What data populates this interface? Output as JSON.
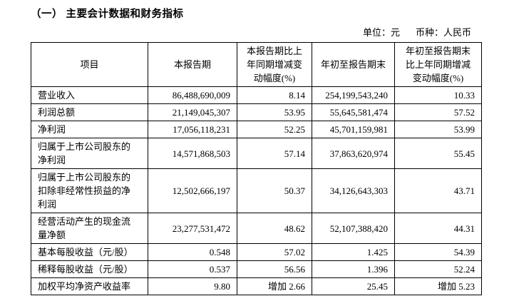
{
  "document": {
    "section_title": "（一） 主要会计数据和财务指标",
    "unit_label": "单位：元",
    "currency_label": "币种：人民币"
  },
  "table": {
    "headers": {
      "item": "项目",
      "current_period": "本报告期",
      "current_period_change": "本报告期比上\n年同期增减变\n动幅度(%)",
      "year_to_date": "年初至报告期末",
      "year_to_date_change": "年初至报告期末\n比上年同期增减\n变动幅度(%)"
    },
    "rows": [
      {
        "item": "营业收入",
        "current_period": "86,488,690,009",
        "current_period_change": "8.14",
        "year_to_date": "254,199,543,240",
        "year_to_date_change": "10.33"
      },
      {
        "item": "利润总额",
        "current_period": "21,149,045,307",
        "current_period_change": "53.95",
        "year_to_date": "55,645,581,474",
        "year_to_date_change": "57.52"
      },
      {
        "item": "净利润",
        "current_period": "17,056,118,231",
        "current_period_change": "52.25",
        "year_to_date": "45,701,159,981",
        "year_to_date_change": "53.99"
      },
      {
        "item": "归属于上市公司股东的\n净利润",
        "current_period": "14,571,868,503",
        "current_period_change": "57.14",
        "year_to_date": "37,863,620,974",
        "year_to_date_change": "55.45"
      },
      {
        "item": "归属于上市公司股东的\n扣除非经常性损益的净\n利润",
        "current_period": "12,502,666,197",
        "current_period_change": "50.37",
        "year_to_date": "34,126,643,303",
        "year_to_date_change": "43.71"
      },
      {
        "item": "经营活动产生的现金流\n量净额",
        "current_period": "23,277,531,472",
        "current_period_change": "48.62",
        "year_to_date": "52,107,388,420",
        "year_to_date_change": "44.31"
      },
      {
        "item": "基本每股收益（元/股）",
        "current_period": "0.548",
        "current_period_change": "57.02",
        "year_to_date": "1.425",
        "year_to_date_change": "54.39"
      },
      {
        "item": "稀释每股收益（元/股）",
        "current_period": "0.537",
        "current_period_change": "56.56",
        "year_to_date": "1.396",
        "year_to_date_change": "52.24"
      },
      {
        "item": "加权平均净资产收益率",
        "current_period": "9.80",
        "current_period_change": "增加 2.66",
        "year_to_date": "25.45",
        "year_to_date_change": "增加 5.23"
      }
    ]
  }
}
